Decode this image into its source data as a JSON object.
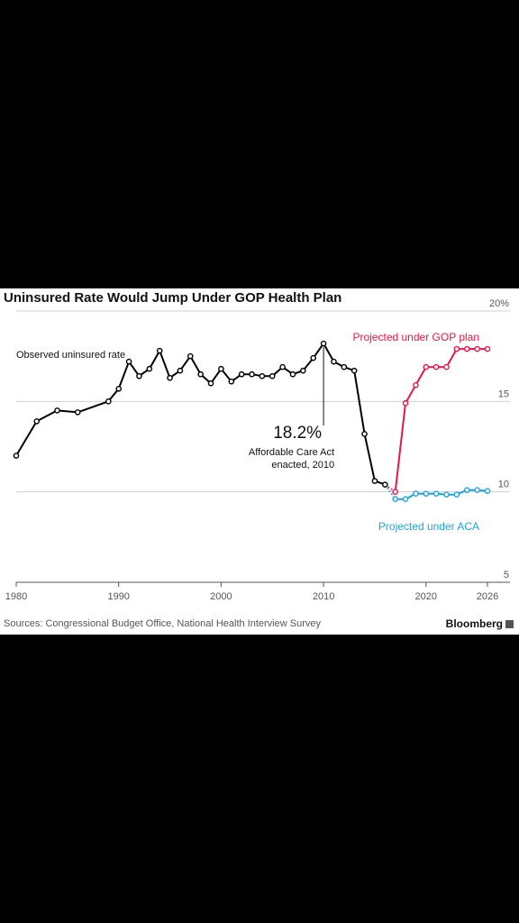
{
  "chart_data": {
    "type": "line",
    "title": "Uninsured Rate Would Jump Under GOP Health Plan",
    "y_unit_suffix": "%",
    "xlim": [
      1980,
      2026
    ],
    "ylim": [
      5,
      20
    ],
    "x_ticks": [
      1980,
      1990,
      2000,
      2010,
      2020,
      2026
    ],
    "y_ticks": [
      5,
      10,
      15,
      20
    ],
    "grid": "horizontal",
    "series": [
      {
        "name": "Observed uninsured rate",
        "color": "#000000",
        "x": [
          1980,
          1982,
          1984,
          1986,
          1989,
          1990,
          1991,
          1992,
          1993,
          1994,
          1995,
          1996,
          1997,
          1998,
          1999,
          2000,
          2001,
          2002,
          2003,
          2004,
          2005,
          2006,
          2007,
          2008,
          2009,
          2010,
          2011,
          2012,
          2013,
          2014,
          2015,
          2016
        ],
        "y": [
          12.0,
          13.9,
          14.5,
          14.4,
          15.0,
          15.7,
          17.2,
          16.4,
          16.8,
          17.8,
          16.3,
          16.7,
          17.5,
          16.5,
          16.0,
          16.8,
          16.1,
          16.5,
          16.5,
          16.4,
          16.4,
          16.9,
          16.5,
          16.7,
          17.4,
          18.2,
          17.2,
          16.9,
          16.7,
          13.2,
          10.6,
          10.4
        ]
      },
      {
        "name": "Projected under GOP plan",
        "color": "#e8174a",
        "x": [
          2017,
          2018,
          2019,
          2020,
          2021,
          2022,
          2023,
          2024,
          2025,
          2026
        ],
        "y": [
          10.0,
          14.9,
          15.9,
          16.9,
          16.9,
          16.9,
          17.9,
          17.9,
          17.9,
          17.9
        ]
      },
      {
        "name": "Projected under ACA",
        "color": "#1fa3e0",
        "x": [
          2017,
          2018,
          2019,
          2020,
          2021,
          2022,
          2023,
          2024,
          2025,
          2026
        ],
        "y": [
          9.6,
          9.6,
          9.9,
          9.9,
          9.9,
          9.85,
          9.85,
          10.1,
          10.1,
          10.05
        ]
      }
    ],
    "annotation": {
      "value_text": "18.2%",
      "label_lines": [
        "Affordable Care Act",
        "enacted, 2010"
      ],
      "x": 2010,
      "y": 18.2
    },
    "source": "Sources: Congressional Budget Office, National Health Interview Survey",
    "brand": "Bloomberg"
  }
}
